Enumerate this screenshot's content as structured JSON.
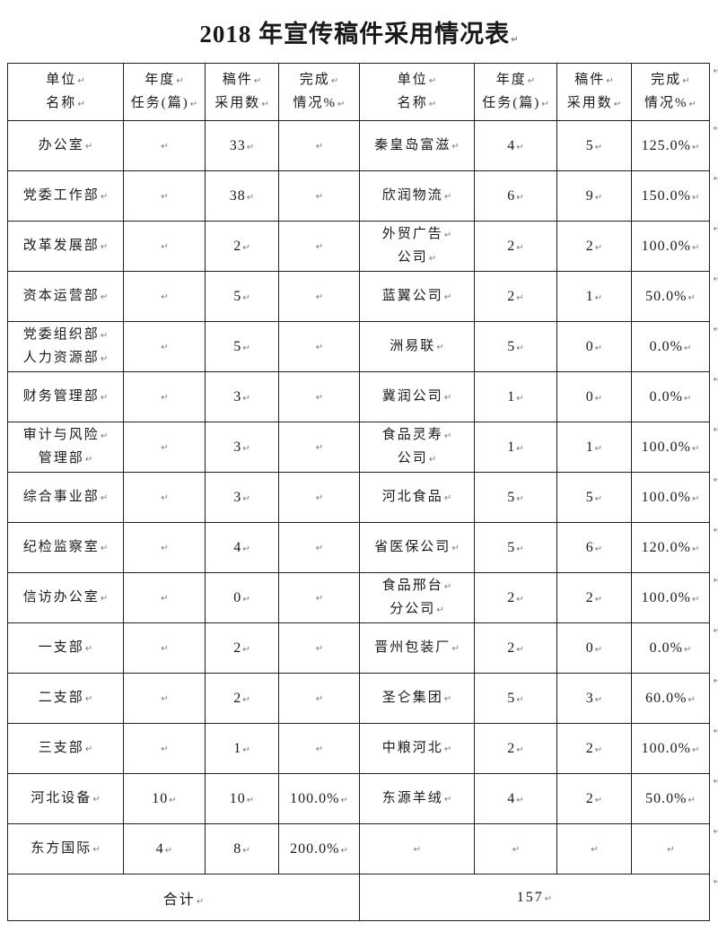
{
  "page": {
    "title": "2018 年宣传稿件采用情况表"
  },
  "marks": {
    "cell": "↵",
    "row": "↵"
  },
  "table": {
    "headers": [
      {
        "line1": "单位",
        "line2": "名称"
      },
      {
        "line1": "年度",
        "line2": "任务(篇)"
      },
      {
        "line1": "稿件",
        "line2": "采用数"
      },
      {
        "line1": "完成",
        "line2": "情况%"
      }
    ],
    "rows": [
      {
        "l": {
          "name": [
            "办公室"
          ],
          "task": "",
          "num": "33",
          "pct": ""
        },
        "r": {
          "name": [
            "秦皇岛富滋"
          ],
          "task": "4",
          "num": "5",
          "pct": "125.0%"
        }
      },
      {
        "l": {
          "name": [
            "党委工作部"
          ],
          "task": "",
          "num": "38",
          "pct": ""
        },
        "r": {
          "name": [
            "欣润物流"
          ],
          "task": "6",
          "num": "9",
          "pct": "150.0%"
        }
      },
      {
        "l": {
          "name": [
            "改革发展部"
          ],
          "task": "",
          "num": "2",
          "pct": ""
        },
        "r": {
          "name": [
            "外贸广告",
            "公司"
          ],
          "task": "2",
          "num": "2",
          "pct": "100.0%"
        }
      },
      {
        "l": {
          "name": [
            "资本运营部"
          ],
          "task": "",
          "num": "5",
          "pct": ""
        },
        "r": {
          "name": [
            "蓝翼公司"
          ],
          "task": "2",
          "num": "1",
          "pct": "50.0%"
        }
      },
      {
        "l": {
          "name": [
            "党委组织部",
            "人力资源部"
          ],
          "task": "",
          "num": "5",
          "pct": ""
        },
        "r": {
          "name": [
            "洲易联"
          ],
          "task": "5",
          "num": "0",
          "pct": "0.0%"
        }
      },
      {
        "l": {
          "name": [
            "财务管理部"
          ],
          "task": "",
          "num": "3",
          "pct": ""
        },
        "r": {
          "name": [
            "冀润公司"
          ],
          "task": "1",
          "num": "0",
          "pct": "0.0%"
        }
      },
      {
        "l": {
          "name": [
            "审计与风险",
            "管理部"
          ],
          "task": "",
          "num": "3",
          "pct": ""
        },
        "r": {
          "name": [
            "食品灵寿",
            "公司"
          ],
          "task": "1",
          "num": "1",
          "pct": "100.0%"
        }
      },
      {
        "l": {
          "name": [
            "综合事业部"
          ],
          "task": "",
          "num": "3",
          "pct": ""
        },
        "r": {
          "name": [
            "河北食品"
          ],
          "task": "5",
          "num": "5",
          "pct": "100.0%"
        }
      },
      {
        "l": {
          "name": [
            "纪检监察室"
          ],
          "task": "",
          "num": "4",
          "pct": ""
        },
        "r": {
          "name": [
            "省医保公司"
          ],
          "task": "5",
          "num": "6",
          "pct": "120.0%"
        }
      },
      {
        "l": {
          "name": [
            "信访办公室"
          ],
          "task": "",
          "num": "0",
          "pct": ""
        },
        "r": {
          "name": [
            "食品邢台",
            "分公司"
          ],
          "task": "2",
          "num": "2",
          "pct": "100.0%"
        }
      },
      {
        "l": {
          "name": [
            "一支部"
          ],
          "task": "",
          "num": "2",
          "pct": ""
        },
        "r": {
          "name": [
            "晋州包装厂"
          ],
          "task": "2",
          "num": "0",
          "pct": "0.0%"
        }
      },
      {
        "l": {
          "name": [
            "二支部"
          ],
          "task": "",
          "num": "2",
          "pct": ""
        },
        "r": {
          "name": [
            "圣仑集团"
          ],
          "task": "5",
          "num": "3",
          "pct": "60.0%"
        }
      },
      {
        "l": {
          "name": [
            "三支部"
          ],
          "task": "",
          "num": "1",
          "pct": ""
        },
        "r": {
          "name": [
            "中粮河北"
          ],
          "task": "2",
          "num": "2",
          "pct": "100.0%"
        }
      },
      {
        "l": {
          "name": [
            "河北设备"
          ],
          "task": "10",
          "num": "10",
          "pct": "100.0%"
        },
        "r": {
          "name": [
            "东源羊绒"
          ],
          "task": "4",
          "num": "2",
          "pct": "50.0%"
        }
      },
      {
        "l": {
          "name": [
            "东方国际"
          ],
          "task": "4",
          "num": "8",
          "pct": "200.0%"
        },
        "r": {
          "name": [],
          "task": "",
          "num": "",
          "pct": ""
        }
      }
    ],
    "total": {
      "label": "合计",
      "value": "157"
    }
  }
}
